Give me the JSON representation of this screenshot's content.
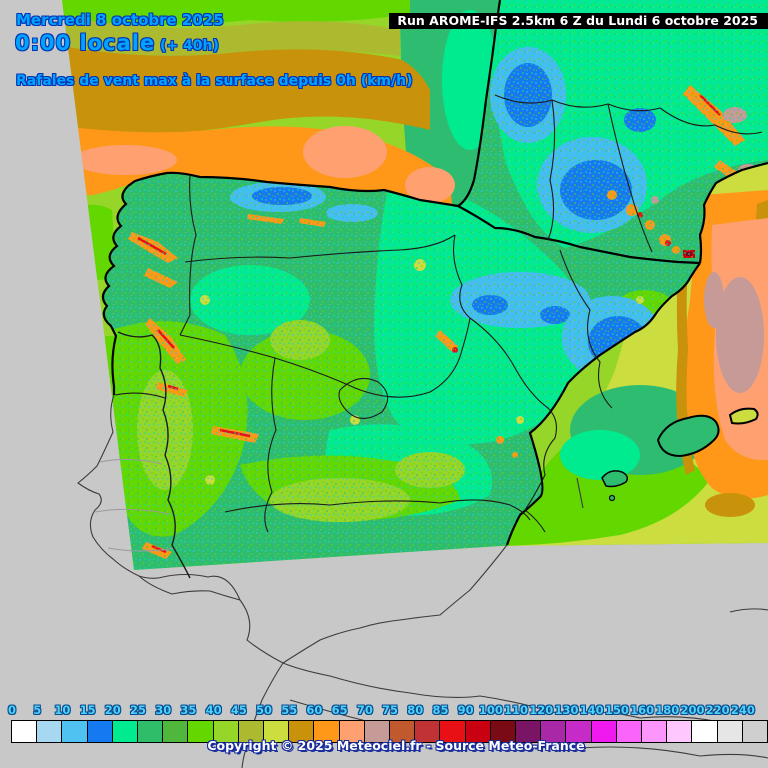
{
  "header": {
    "date_line": "Mercredi 8 octobre 2025",
    "time_line": "0:00 locale",
    "offset_label": "(+ 40h)",
    "subtitle": "Rafales de vent max à la surface depuis 0h (km/h)",
    "text_color": "#00A4FF",
    "outline_color": "#0633B4"
  },
  "run_info": {
    "label": "Run AROME-IFS 2.5km 6 Z du Lundi 6 octobre 2025",
    "bg_color": "#000000",
    "text_color": "#FFFFFF"
  },
  "legend": {
    "unit": "km/h",
    "label_color": "#4FD2F7",
    "label_outline_color": "#084A90",
    "swatches": [
      {
        "label": "0",
        "color": "#FFFFFF"
      },
      {
        "label": "5",
        "color": "#A6D8F2"
      },
      {
        "label": "10",
        "color": "#4FC2F2"
      },
      {
        "label": "15",
        "color": "#1579F0"
      },
      {
        "label": "20",
        "color": "#00EB90"
      },
      {
        "label": "25",
        "color": "#30BD6A"
      },
      {
        "label": "30",
        "color": "#4FB83C"
      },
      {
        "label": "35",
        "color": "#62D800"
      },
      {
        "label": "40",
        "color": "#96D629"
      },
      {
        "label": "45",
        "color": "#ACBA30"
      },
      {
        "label": "50",
        "color": "#CBDD3F"
      },
      {
        "label": "55",
        "color": "#C8920A"
      },
      {
        "label": "60",
        "color": "#FF9719"
      },
      {
        "label": "65",
        "color": "#FFA071"
      },
      {
        "label": "70",
        "color": "#C69A96"
      },
      {
        "label": "75",
        "color": "#C05A2E"
      },
      {
        "label": "80",
        "color": "#C03233"
      },
      {
        "label": "85",
        "color": "#E81014"
      },
      {
        "label": "90",
        "color": "#C80011"
      },
      {
        "label": "100",
        "color": "#7A0A14"
      },
      {
        "label": "110",
        "color": "#7A1464"
      },
      {
        "label": "120",
        "color": "#A828A8"
      },
      {
        "label": "130",
        "color": "#C72BC7"
      },
      {
        "label": "140",
        "color": "#F019F0"
      },
      {
        "label": "150",
        "color": "#FA64FA"
      },
      {
        "label": "160",
        "color": "#FC96FC"
      },
      {
        "label": "180",
        "color": "#FEC8FE"
      },
      {
        "label": "200",
        "color": "#FFFFFF"
      },
      {
        "label": "220",
        "color": "#E6E6E6"
      },
      {
        "label": "240",
        "color": "#CFCFCF"
      }
    ]
  },
  "footer": {
    "copyright": "Copyright © 2025 Meteociel.fr - Source Meteo-France"
  },
  "map": {
    "no_data_color": "#C8C8C8",
    "palette": {
      "calm_teal": "#2EBD70",
      "spring_green": "#00EB90",
      "bright_green": "#62D800",
      "yellow_green": "#96D629",
      "yellow": "#CBDD3F",
      "ochre": "#C8920A",
      "orange": "#FF9719",
      "salmon": "#FFA071",
      "rosy": "#C69A96",
      "gust_blue": "#1579F0",
      "gust_cyan": "#45BDF2",
      "peak_red": "#E81014"
    }
  }
}
